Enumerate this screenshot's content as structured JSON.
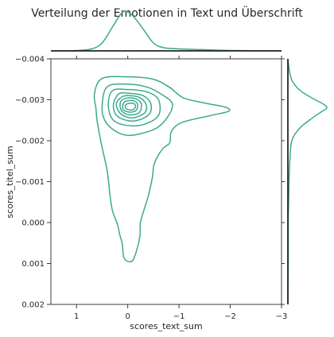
{
  "chart_data": {
    "type": "kde-joint",
    "title": "Verteilung der Emotionen in Text und Überschrift",
    "xlabel": "scores_text_sum",
    "ylabel": "scores_titel_sum",
    "x_axis_inverted": true,
    "y_axis_inverted": true,
    "xlim": [
      1.5,
      -3.0
    ],
    "ylim": [
      0.002,
      -0.004
    ],
    "x_ticks": [
      1,
      0,
      -1,
      -2,
      -3
    ],
    "x_tick_labels": [
      "1",
      "0",
      "−1",
      "−2",
      "−3"
    ],
    "y_ticks": [
      0.002,
      0.001,
      0.0,
      -0.001,
      -0.002,
      -0.003,
      -0.004
    ],
    "y_tick_labels": [
      "0.002",
      "0.001",
      "0.000",
      "−0.001",
      "−0.002",
      "−0.003",
      "−0.004"
    ],
    "color": "#3aaa8c",
    "mode": [
      -0.05,
      -0.0028
    ],
    "joint_kde_levels": [
      [
        [
          0.5,
          -0.00352
        ],
        [
          0.0,
          -0.00356
        ],
        [
          -0.5,
          -0.0035
        ],
        [
          -0.82,
          -0.0033
        ],
        [
          -1.08,
          -0.00305
        ],
        [
          -1.5,
          -0.00292
        ],
        [
          -1.9,
          -0.00282
        ],
        [
          -1.97,
          -0.00272
        ],
        [
          -1.6,
          -0.00261
        ],
        [
          -1.05,
          -0.00244
        ],
        [
          -0.85,
          -0.00222
        ],
        [
          -0.82,
          -0.00195
        ],
        [
          -0.68,
          -0.0018
        ],
        [
          -0.52,
          -0.00145
        ],
        [
          -0.48,
          -0.0011
        ],
        [
          -0.4,
          -0.00065
        ],
        [
          -0.25,
          -2e-05
        ],
        [
          -0.24,
          0.0003
        ],
        [
          -0.18,
          0.00065
        ],
        [
          -0.1,
          0.00092
        ],
        [
          0.0,
          0.00095
        ],
        [
          0.08,
          0.00084
        ],
        [
          0.1,
          0.0006
        ],
        [
          0.12,
          0.00045
        ],
        [
          0.16,
          0.00028
        ],
        [
          0.2,
          5e-05
        ],
        [
          0.3,
          -0.0003
        ],
        [
          0.35,
          -0.0007
        ],
        [
          0.4,
          -0.00125
        ],
        [
          0.52,
          -0.00195
        ],
        [
          0.6,
          -0.0025
        ],
        [
          0.62,
          -0.00278
        ],
        [
          0.65,
          -0.00315
        ]
      ],
      [
        [
          0.4,
          -0.00332
        ],
        [
          0.0,
          -0.00338
        ],
        [
          -0.4,
          -0.0033
        ],
        [
          -0.7,
          -0.0031
        ],
        [
          -0.87,
          -0.0029
        ],
        [
          -0.8,
          -0.00262
        ],
        [
          -0.58,
          -0.00232
        ],
        [
          -0.28,
          -0.00218
        ],
        [
          0.0,
          -0.00213
        ],
        [
          0.25,
          -0.00224
        ],
        [
          0.45,
          -0.0025
        ],
        [
          0.5,
          -0.00285
        ]
      ],
      [
        [
          0.3,
          -0.00322
        ],
        [
          0.0,
          -0.00325
        ],
        [
          -0.38,
          -0.00319
        ],
        [
          -0.6,
          -0.003
        ],
        [
          -0.6,
          -0.00262
        ],
        [
          -0.32,
          -0.0024
        ],
        [
          0.0,
          -0.00237
        ],
        [
          0.28,
          -0.0025
        ],
        [
          0.38,
          -0.00285
        ]
      ],
      [
        [
          0.18,
          -0.00314
        ],
        [
          0.0,
          -0.00316
        ],
        [
          -0.3,
          -0.0031
        ],
        [
          -0.45,
          -0.0029
        ],
        [
          -0.42,
          -0.00265
        ],
        [
          -0.2,
          -0.0025
        ],
        [
          0.0,
          -0.00249
        ],
        [
          0.22,
          -0.00262
        ],
        [
          0.28,
          -0.00288
        ]
      ],
      [
        [
          0.1,
          -0.00308
        ],
        [
          -0.05,
          -0.0031
        ],
        [
          -0.24,
          -0.00305
        ],
        [
          -0.36,
          -0.00288
        ],
        [
          -0.33,
          -0.00268
        ],
        [
          -0.12,
          -0.00256
        ],
        [
          0.05,
          -0.00259
        ],
        [
          0.18,
          -0.00272
        ],
        [
          0.22,
          -0.00292
        ]
      ],
      [
        [
          0.05,
          -0.00303
        ],
        [
          -0.1,
          -0.00304
        ],
        [
          -0.22,
          -0.00298
        ],
        [
          -0.27,
          -0.00285
        ],
        [
          -0.22,
          -0.00268
        ],
        [
          -0.08,
          -0.00263
        ],
        [
          0.05,
          -0.00266
        ],
        [
          0.14,
          -0.00278
        ],
        [
          0.14,
          -0.00295
        ]
      ],
      [
        [
          0.02,
          -0.00297
        ],
        [
          -0.1,
          -0.00298
        ],
        [
          -0.18,
          -0.00292
        ],
        [
          -0.19,
          -0.00281
        ],
        [
          -0.14,
          -0.00272
        ],
        [
          -0.02,
          -0.0027
        ],
        [
          0.08,
          -0.00275
        ],
        [
          0.1,
          -0.00285
        ],
        [
          0.07,
          -0.00294
        ]
      ],
      [
        [
          -0.02,
          -0.00291
        ],
        [
          -0.12,
          -0.00291
        ],
        [
          -0.15,
          -0.00284
        ],
        [
          -0.12,
          -0.00277
        ],
        [
          -0.04,
          -0.00275
        ],
        [
          0.04,
          -0.00279
        ],
        [
          0.04,
          -0.00287
        ]
      ]
    ],
    "marginal_x_density": [
      [
        1.5,
        0.0
      ],
      [
        1.0,
        0.01
      ],
      [
        0.7,
        0.05
      ],
      [
        0.5,
        0.2
      ],
      [
        0.3,
        0.6
      ],
      [
        0.15,
        0.9
      ],
      [
        0.05,
        1.0
      ],
      [
        -0.1,
        0.88
      ],
      [
        -0.3,
        0.55
      ],
      [
        -0.5,
        0.2
      ],
      [
        -0.7,
        0.08
      ],
      [
        -1.0,
        0.05
      ],
      [
        -1.5,
        0.03
      ],
      [
        -2.0,
        0.01
      ],
      [
        -3.0,
        0.0
      ]
    ],
    "marginal_y_density": [
      [
        0.002,
        0.0
      ],
      [
        0.001,
        0.01
      ],
      [
        0.0,
        0.01
      ],
      [
        -0.0005,
        0.02
      ],
      [
        -0.001,
        0.03
      ],
      [
        -0.0015,
        0.05
      ],
      [
        -0.002,
        0.1
      ],
      [
        -0.0023,
        0.3
      ],
      [
        -0.0025,
        0.55
      ],
      [
        -0.0027,
        0.85
      ],
      [
        -0.0028,
        1.0
      ],
      [
        -0.0029,
        0.9
      ],
      [
        -0.003,
        0.7
      ],
      [
        -0.0032,
        0.35
      ],
      [
        -0.0034,
        0.15
      ],
      [
        -0.0036,
        0.06
      ],
      [
        -0.004,
        0.0
      ]
    ]
  }
}
